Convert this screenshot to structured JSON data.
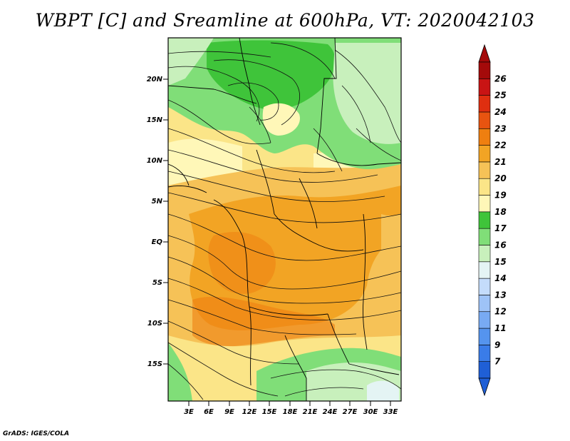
{
  "title": "WBPT [C] and Sreamline at 600hPa, VT: 2020042103",
  "credit": "GrADS: IGES/COLA",
  "map": {
    "lat_labels": [
      "20N",
      "15N",
      "10N",
      "5N",
      "EQ",
      "5S",
      "10S",
      "15S"
    ],
    "lon_labels": [
      "3E",
      "6E",
      "9E",
      "12E",
      "15E",
      "18E",
      "21E",
      "24E",
      "27E",
      "30E",
      "33E"
    ],
    "fields": {
      "shaded": "wet-bulb potential temperature [C]",
      "contours": "streamlines at 600hPa"
    }
  },
  "colorbar": {
    "labels": [
      "7",
      "9",
      "11",
      "12",
      "13",
      "14",
      "15",
      "16",
      "17",
      "18",
      "19",
      "20",
      "21",
      "22",
      "23",
      "24",
      "25",
      "26"
    ],
    "colors": [
      "#1f5fd6",
      "#3a7ce8",
      "#5594ee",
      "#78aaf3",
      "#9ec3f7",
      "#c4dcfb",
      "#e4f4f4",
      "#c8f0bc",
      "#80de78",
      "#3fc43a",
      "#fff7b8",
      "#fbe588",
      "#f6c257",
      "#f2a424",
      "#ef7f10",
      "#e85410",
      "#df2f10",
      "#c91414",
      "#a40a0a"
    ],
    "arrow_low_color": "#1f5fd6",
    "arrow_high_color": "#a40a0a"
  }
}
